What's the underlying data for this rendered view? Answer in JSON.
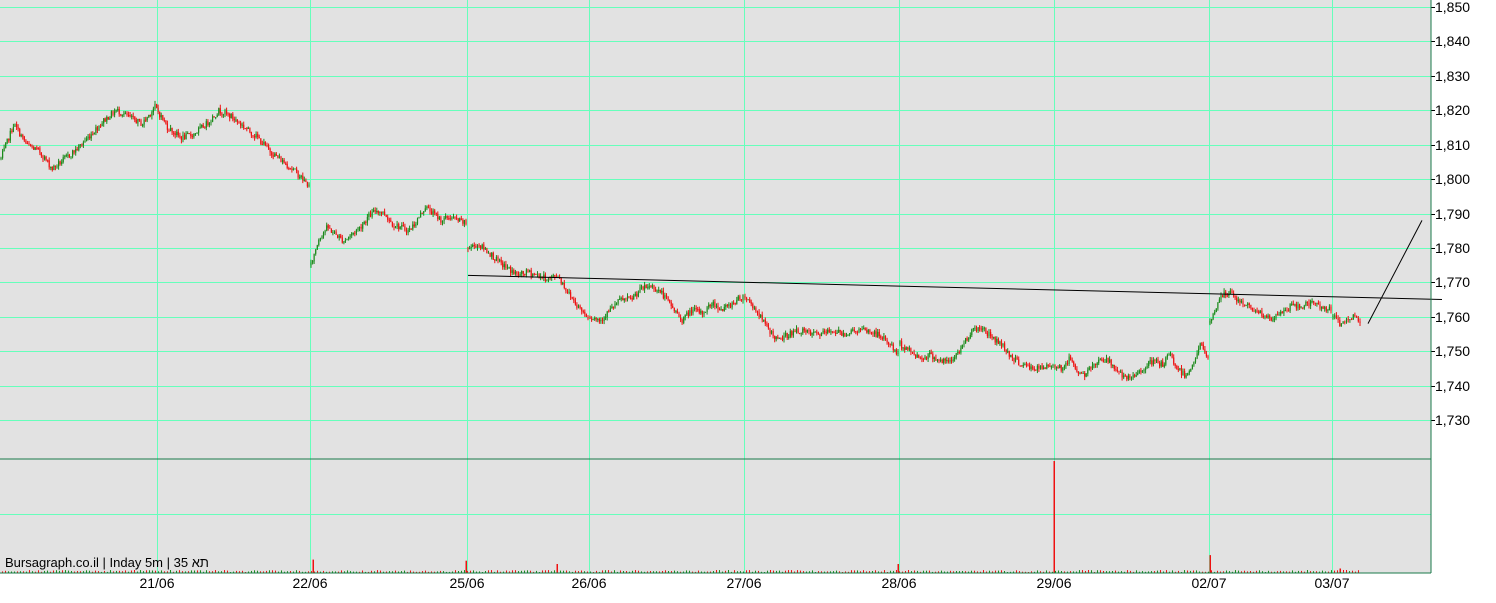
{
  "chart_data": {
    "type": "candlestick",
    "title": "",
    "watermark": "Bursagraph.co.il | Inday 5m | 35 תא",
    "xlabel": "",
    "ylabel": "",
    "y_ticks": [
      "1,850",
      "1,840",
      "1,830",
      "1,820",
      "1,810",
      "1,800",
      "1,790",
      "1,780",
      "1,770",
      "1,760",
      "1,750",
      "1,740",
      "1,730"
    ],
    "ylim": [
      1722,
      1851
    ],
    "x_day_labels": [
      "21/06",
      "22/06",
      "25/06",
      "26/06",
      "27/06",
      "28/06",
      "29/06",
      "02/07",
      "03/07"
    ],
    "grid": true,
    "colors": {
      "background": "#e2e2e2",
      "grid": "#66ffbb",
      "up": "#1a8a1a",
      "down": "#ee1111",
      "trendline": "#000000",
      "volume": "#ee1111",
      "text": "#000000"
    },
    "price_path": [
      {
        "day": "21/06",
        "start": 1806,
        "end": 1814,
        "points": [
          1806,
          1816,
          1810,
          1808,
          1803,
          1806,
          1809,
          1813,
          1817,
          1820,
          1818,
          1816,
          1821,
          1815,
          1812,
          1813,
          1816,
          1820,
          1818,
          1815,
          1812,
          1808,
          1805,
          1802,
          1798
        ]
      },
      {
        "day": "22/06",
        "start": 1777,
        "end": 1788,
        "points": [
          1775,
          1783,
          1786,
          1784,
          1782,
          1784,
          1786,
          1789,
          1791,
          1790,
          1787,
          1786,
          1785,
          1788,
          1792,
          1790,
          1788,
          1789,
          1788,
          1787
        ]
      },
      {
        "day": "25/06",
        "start": 1780,
        "end": 1760,
        "points": [
          1780,
          1781,
          1779,
          1776,
          1774,
          1772,
          1773,
          1772,
          1771,
          1772,
          1767,
          1763,
          1760
        ]
      },
      {
        "day": "26/06",
        "start": 1760,
        "end": 1766,
        "points": [
          1760,
          1759,
          1762,
          1765,
          1765,
          1768,
          1769,
          1767,
          1763,
          1759,
          1762,
          1761,
          1764,
          1762,
          1764,
          1766
        ]
      },
      {
        "day": "27/06",
        "start": 1766,
        "end": 1756,
        "points": [
          1766,
          1762,
          1757,
          1753,
          1755,
          1756,
          1755,
          1755,
          1756,
          1755,
          1756,
          1756,
          1755,
          1753,
          1749
        ]
      },
      {
        "day": "28/06",
        "start": 1749,
        "end": 1752,
        "points": [
          1752,
          1750,
          1748,
          1749,
          1747,
          1747,
          1751,
          1756,
          1757,
          1754,
          1752,
          1748,
          1746,
          1745,
          1745,
          1746
        ]
      },
      {
        "day": "29/06",
        "start": 1749,
        "end": 1748,
        "points": [
          1746,
          1745,
          1748,
          1744,
          1743,
          1746,
          1748,
          1747,
          1745,
          1742,
          1742,
          1744,
          1746,
          1747,
          1746,
          1749,
          1745,
          1743,
          1746,
          1752,
          1748
        ]
      },
      {
        "day": "02/07",
        "start": 1758,
        "end": 1762,
        "points": [
          1758,
          1766,
          1767,
          1764,
          1763,
          1761,
          1759,
          1761,
          1763,
          1763,
          1764,
          1763,
          1762
        ]
      },
      {
        "day": "03/07",
        "start": 1760,
        "end": 1759,
        "points": [
          1760,
          1758,
          1759,
          1760,
          1759
        ]
      }
    ],
    "trendlines": [
      {
        "from": {
          "day": "25/06",
          "price": 1772
        },
        "to": {
          "beyond": "03/07",
          "price": 1765
        }
      },
      {
        "from": {
          "day": "03/07",
          "price": 1758
        },
        "to": {
          "beyond": "03/07",
          "price": 1788
        }
      }
    ],
    "volume_spikes": [
      {
        "day": "22/06",
        "relative": 0.12
      },
      {
        "day": "25/06",
        "relative": 0.11
      },
      {
        "day": "25/06",
        "relative": 0.08
      },
      {
        "day": "28/06",
        "relative": 0.08
      },
      {
        "day": "29/06",
        "relative": 1.0
      },
      {
        "day": "02/07",
        "relative": 0.16
      },
      {
        "day": "03/07",
        "relative": 0.04
      }
    ]
  }
}
